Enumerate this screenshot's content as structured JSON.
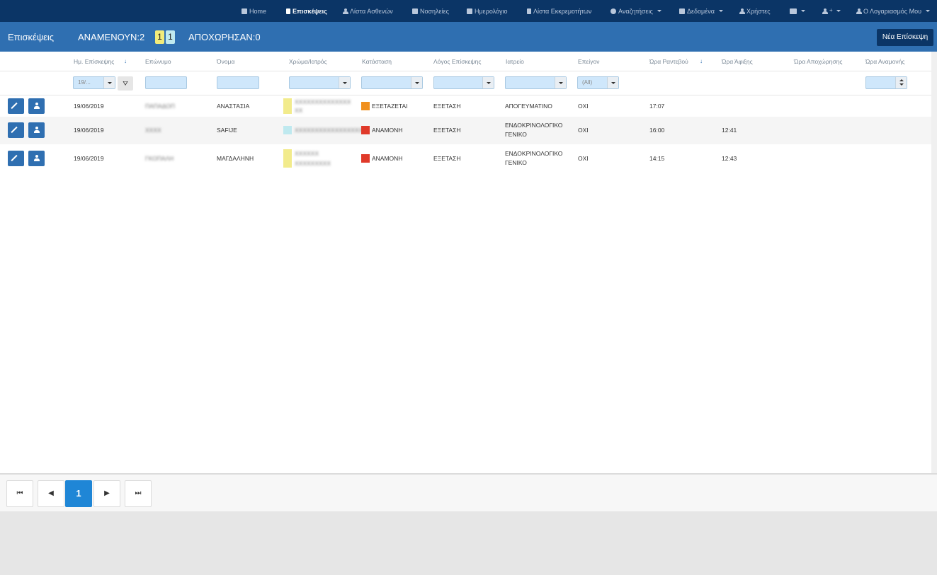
{
  "nav": {
    "home": "Home",
    "visits": "Επισκέψεις",
    "patients": "Λίστα Ασθενών",
    "hospitalizations": "Νοσηλείες",
    "calendar": "Ημερολόγιο",
    "pending": "Λίστα Εκκρεμοτήτων",
    "searches": "Αναζητήσεις",
    "data": "Δεδομένα",
    "users": "Χρήστες",
    "account": "Ο Λογαριασμός Μου"
  },
  "header": {
    "title": "Επισκέψεις",
    "waiting": "ΑΝΑΜΕΝΟΥΝ:2",
    "badge_yellow": "1",
    "badge_cyan": "1",
    "left": "ΑΠΟΧΩΡΗΣΑΝ:0",
    "new_visit": "Νέα Επίσκεψη"
  },
  "columns": {
    "date": "Ημ. Επίσκεψης",
    "surname": "Επώνυμο",
    "name": "Όνομα",
    "color_doctor": "Χρώμα/Ιατρός",
    "status": "Κατάσταση",
    "reason": "Λόγος Επίσκεψης",
    "clinic": "Ιατρείο",
    "urgent": "Επείγον",
    "appointment_time": "Ώρα Ραντεβού",
    "arrival_time": "Ώρα Άφιξης",
    "departure_time": "Ώρα Αποχώρησης",
    "wait_time": "Ώρα Αναμονής"
  },
  "filters": {
    "date_value": "19/...",
    "urgent_value": "(All)"
  },
  "colors": {
    "nav_bg": "#0b3566",
    "header_bg": "#2f6fb1",
    "filter_bg": "#cfe7fb",
    "page_active": "#1f86d6"
  },
  "rows": [
    {
      "date": "19/06/2019",
      "surname": "ΠΑΠΑΔΟΠ",
      "name": "ΑΝΑΣΤΑΣΙΑ",
      "doctor_l1": "ΧΧΧΧΧΧΧΧΧΧΧΧΧΧ",
      "doctor_l2": "ΧΧ",
      "swatch": "#f2eb8c",
      "status": "ΕΞΕΤΑΖΕΤΑΙ",
      "status_color": "#f0901e",
      "reason": "ΕΞΕΤΑΣΗ",
      "clinic_l1": "ΑΠΟΓΕΥΜΑΤΙΝΟ",
      "clinic_l2": "",
      "urgent": "ΟΧΙ",
      "appt": "17:07",
      "arrival": ""
    },
    {
      "date": "19/06/2019",
      "surname": "ΧΧΧΧ",
      "name": "SAFIJE",
      "doctor_l1": "ΧΧΧΧΧΧΧΧΧΧΧΧΧΧΧΧΧ",
      "doctor_l2": "",
      "swatch": "#bfe9ef",
      "status": "ΑΝΑΜΟΝΗ",
      "status_color": "#e03a2a",
      "reason": "ΕΞΕΤΑΣΗ",
      "clinic_l1": "ΕΝΔΟΚΡΙΝΟΛΟΓΙΚΟ",
      "clinic_l2": "ΓΕΝΙΚΟ",
      "urgent": "ΟΧΙ",
      "appt": "16:00",
      "arrival": "12:41"
    },
    {
      "date": "19/06/2019",
      "surname": "ΓΚΟΠΑΛΗ",
      "name": "ΜΑΓΔΑΛΗΝΗ",
      "doctor_l1": "ΧΧΧΧΧΧ",
      "doctor_l2": "ΧΧΧΧΧΧΧΧΧ",
      "swatch": "#f2eb8c",
      "status": "ΑΝΑΜΟΝΗ",
      "status_color": "#e03a2a",
      "reason": "ΕΞΕΤΑΣΗ",
      "clinic_l1": "ΕΝΔΟΚΡΙΝΟΛΟΓΙΚΟ",
      "clinic_l2": "ΓΕΝΙΚΟ",
      "urgent": "ΟΧΙ",
      "appt": "14:15",
      "arrival": "12:43"
    }
  ],
  "pager": {
    "first": "⏮",
    "prev": "◀",
    "current": "1",
    "next": "▶",
    "last": "⏭"
  }
}
